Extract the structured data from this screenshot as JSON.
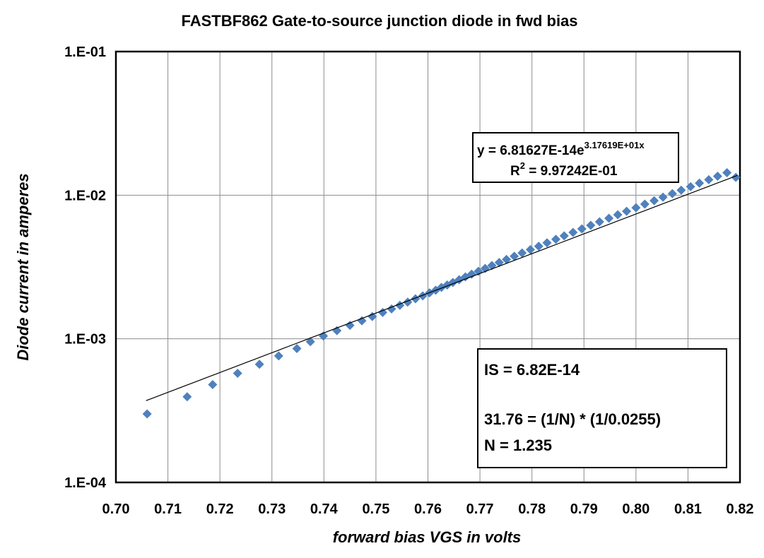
{
  "chart_data": {
    "type": "scatter",
    "title": "FASTBF862  Gate-to-source junction diode in fwd bias",
    "xlabel": "forward bias  VGS  in volts",
    "ylabel": "Diode current  in amperes",
    "xlim": [
      0.7,
      0.82
    ],
    "ylim": [
      0.0001,
      0.1
    ],
    "yscale": "log",
    "grid": true,
    "x_ticks": [
      "0.70",
      "0.71",
      "0.72",
      "0.73",
      "0.74",
      "0.75",
      "0.76",
      "0.77",
      "0.78",
      "0.79",
      "0.80",
      "0.81",
      "0.82"
    ],
    "y_ticks": [
      "1.E-04",
      "1.E-03",
      "1.E-02",
      "1.E-01"
    ],
    "series": [
      {
        "color": "#4f81bd",
        "marker": "diamond",
        "points": [
          [
            0.706,
            0.0003
          ],
          [
            0.7137,
            0.000395
          ],
          [
            0.7186,
            0.00048
          ],
          [
            0.7234,
            0.000575
          ],
          [
            0.7276,
            0.000665
          ],
          [
            0.7313,
            0.00076
          ],
          [
            0.7348,
            0.000855
          ],
          [
            0.7374,
            0.000955
          ],
          [
            0.7399,
            0.001045
          ],
          [
            0.7425,
            0.00114
          ],
          [
            0.745,
            0.00124
          ],
          [
            0.7473,
            0.001335
          ],
          [
            0.7493,
            0.00143
          ],
          [
            0.7513,
            0.001525
          ],
          [
            0.753,
            0.001615
          ],
          [
            0.7546,
            0.00171
          ],
          [
            0.7561,
            0.0018
          ],
          [
            0.7576,
            0.0019
          ],
          [
            0.759,
            0.00199
          ],
          [
            0.7603,
            0.00209
          ],
          [
            0.7615,
            0.00218
          ],
          [
            0.7626,
            0.00228
          ],
          [
            0.7637,
            0.00237
          ],
          [
            0.7648,
            0.00247
          ],
          [
            0.766,
            0.00258
          ],
          [
            0.7672,
            0.0027
          ],
          [
            0.7684,
            0.00282
          ],
          [
            0.7697,
            0.00295
          ],
          [
            0.771,
            0.00309
          ],
          [
            0.7723,
            0.00324
          ],
          [
            0.7737,
            0.0034
          ],
          [
            0.7751,
            0.00357
          ],
          [
            0.7766,
            0.00376
          ],
          [
            0.7781,
            0.00396
          ],
          [
            0.7797,
            0.00418
          ],
          [
            0.7813,
            0.00441
          ],
          [
            0.7829,
            0.00466
          ],
          [
            0.7846,
            0.00493
          ],
          [
            0.7862,
            0.00521
          ],
          [
            0.7879,
            0.00551
          ],
          [
            0.7896,
            0.00583
          ],
          [
            0.7913,
            0.00617
          ],
          [
            0.793,
            0.00653
          ],
          [
            0.7948,
            0.00691
          ],
          [
            0.7965,
            0.00731
          ],
          [
            0.7982,
            0.00773
          ],
          [
            0.8,
            0.00818
          ],
          [
            0.8017,
            0.00866
          ],
          [
            0.8035,
            0.00916
          ],
          [
            0.8052,
            0.00969
          ],
          [
            0.807,
            0.01025
          ],
          [
            0.8087,
            0.01084
          ],
          [
            0.8105,
            0.01147
          ],
          [
            0.8122,
            0.01213
          ],
          [
            0.814,
            0.01283
          ],
          [
            0.8157,
            0.01356
          ],
          [
            0.8175,
            0.01434
          ],
          [
            0.8192,
            0.0133
          ]
        ]
      }
    ],
    "trendline": {
      "type": "exponential",
      "a": 6.81627e-14,
      "b": 31.7619,
      "x_range": [
        0.7058,
        0.8195
      ],
      "color": "#000000"
    },
    "equation_box": {
      "line1_prefix": "y = 6.81627E-14e",
      "line1_sup": "3.17619E+01x",
      "line2_prefix": "R",
      "line2_sup": "2",
      "line2_suffix": " = 9.97242E-01"
    },
    "note_box": {
      "line1": "IS = 6.82E-14",
      "line2": "31.76 = (1/N) * (1/0.0255)",
      "line3": "N = 1.235"
    }
  }
}
